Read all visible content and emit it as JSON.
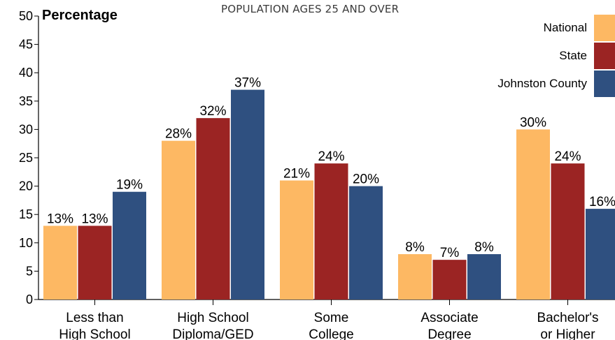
{
  "chart_data": {
    "type": "bar",
    "title": "POPULATION AGES 25 AND OVER",
    "ylabel": "Percentage",
    "xlabel": "",
    "ylim": [
      0,
      50
    ],
    "yticks": [
      0,
      5,
      10,
      15,
      20,
      25,
      30,
      35,
      40,
      45,
      50
    ],
    "categories": [
      [
        "Less than",
        "High School"
      ],
      [
        "High School",
        "Diploma/GED"
      ],
      [
        "Some",
        "College"
      ],
      [
        "Associate",
        "Degree"
      ],
      [
        "Bachelor's",
        "or Higher"
      ]
    ],
    "series": [
      {
        "name": "National",
        "color": "#FDB863",
        "values": [
          13,
          28,
          21,
          8,
          30
        ],
        "labels": [
          "13%",
          "28%",
          "21%",
          "8%",
          "30%"
        ]
      },
      {
        "name": "State",
        "color": "#9B2423",
        "values": [
          13,
          32,
          24,
          7,
          24
        ],
        "labels": [
          "13%",
          "32%",
          "24%",
          "7%",
          "24%"
        ]
      },
      {
        "name": "Johnston County",
        "color": "#2F5080",
        "values": [
          19,
          37,
          20,
          8,
          16
        ],
        "labels": [
          "19%",
          "37%",
          "20%",
          "8%",
          "16%"
        ]
      }
    ],
    "grid": false,
    "legend_position": "top-right"
  }
}
